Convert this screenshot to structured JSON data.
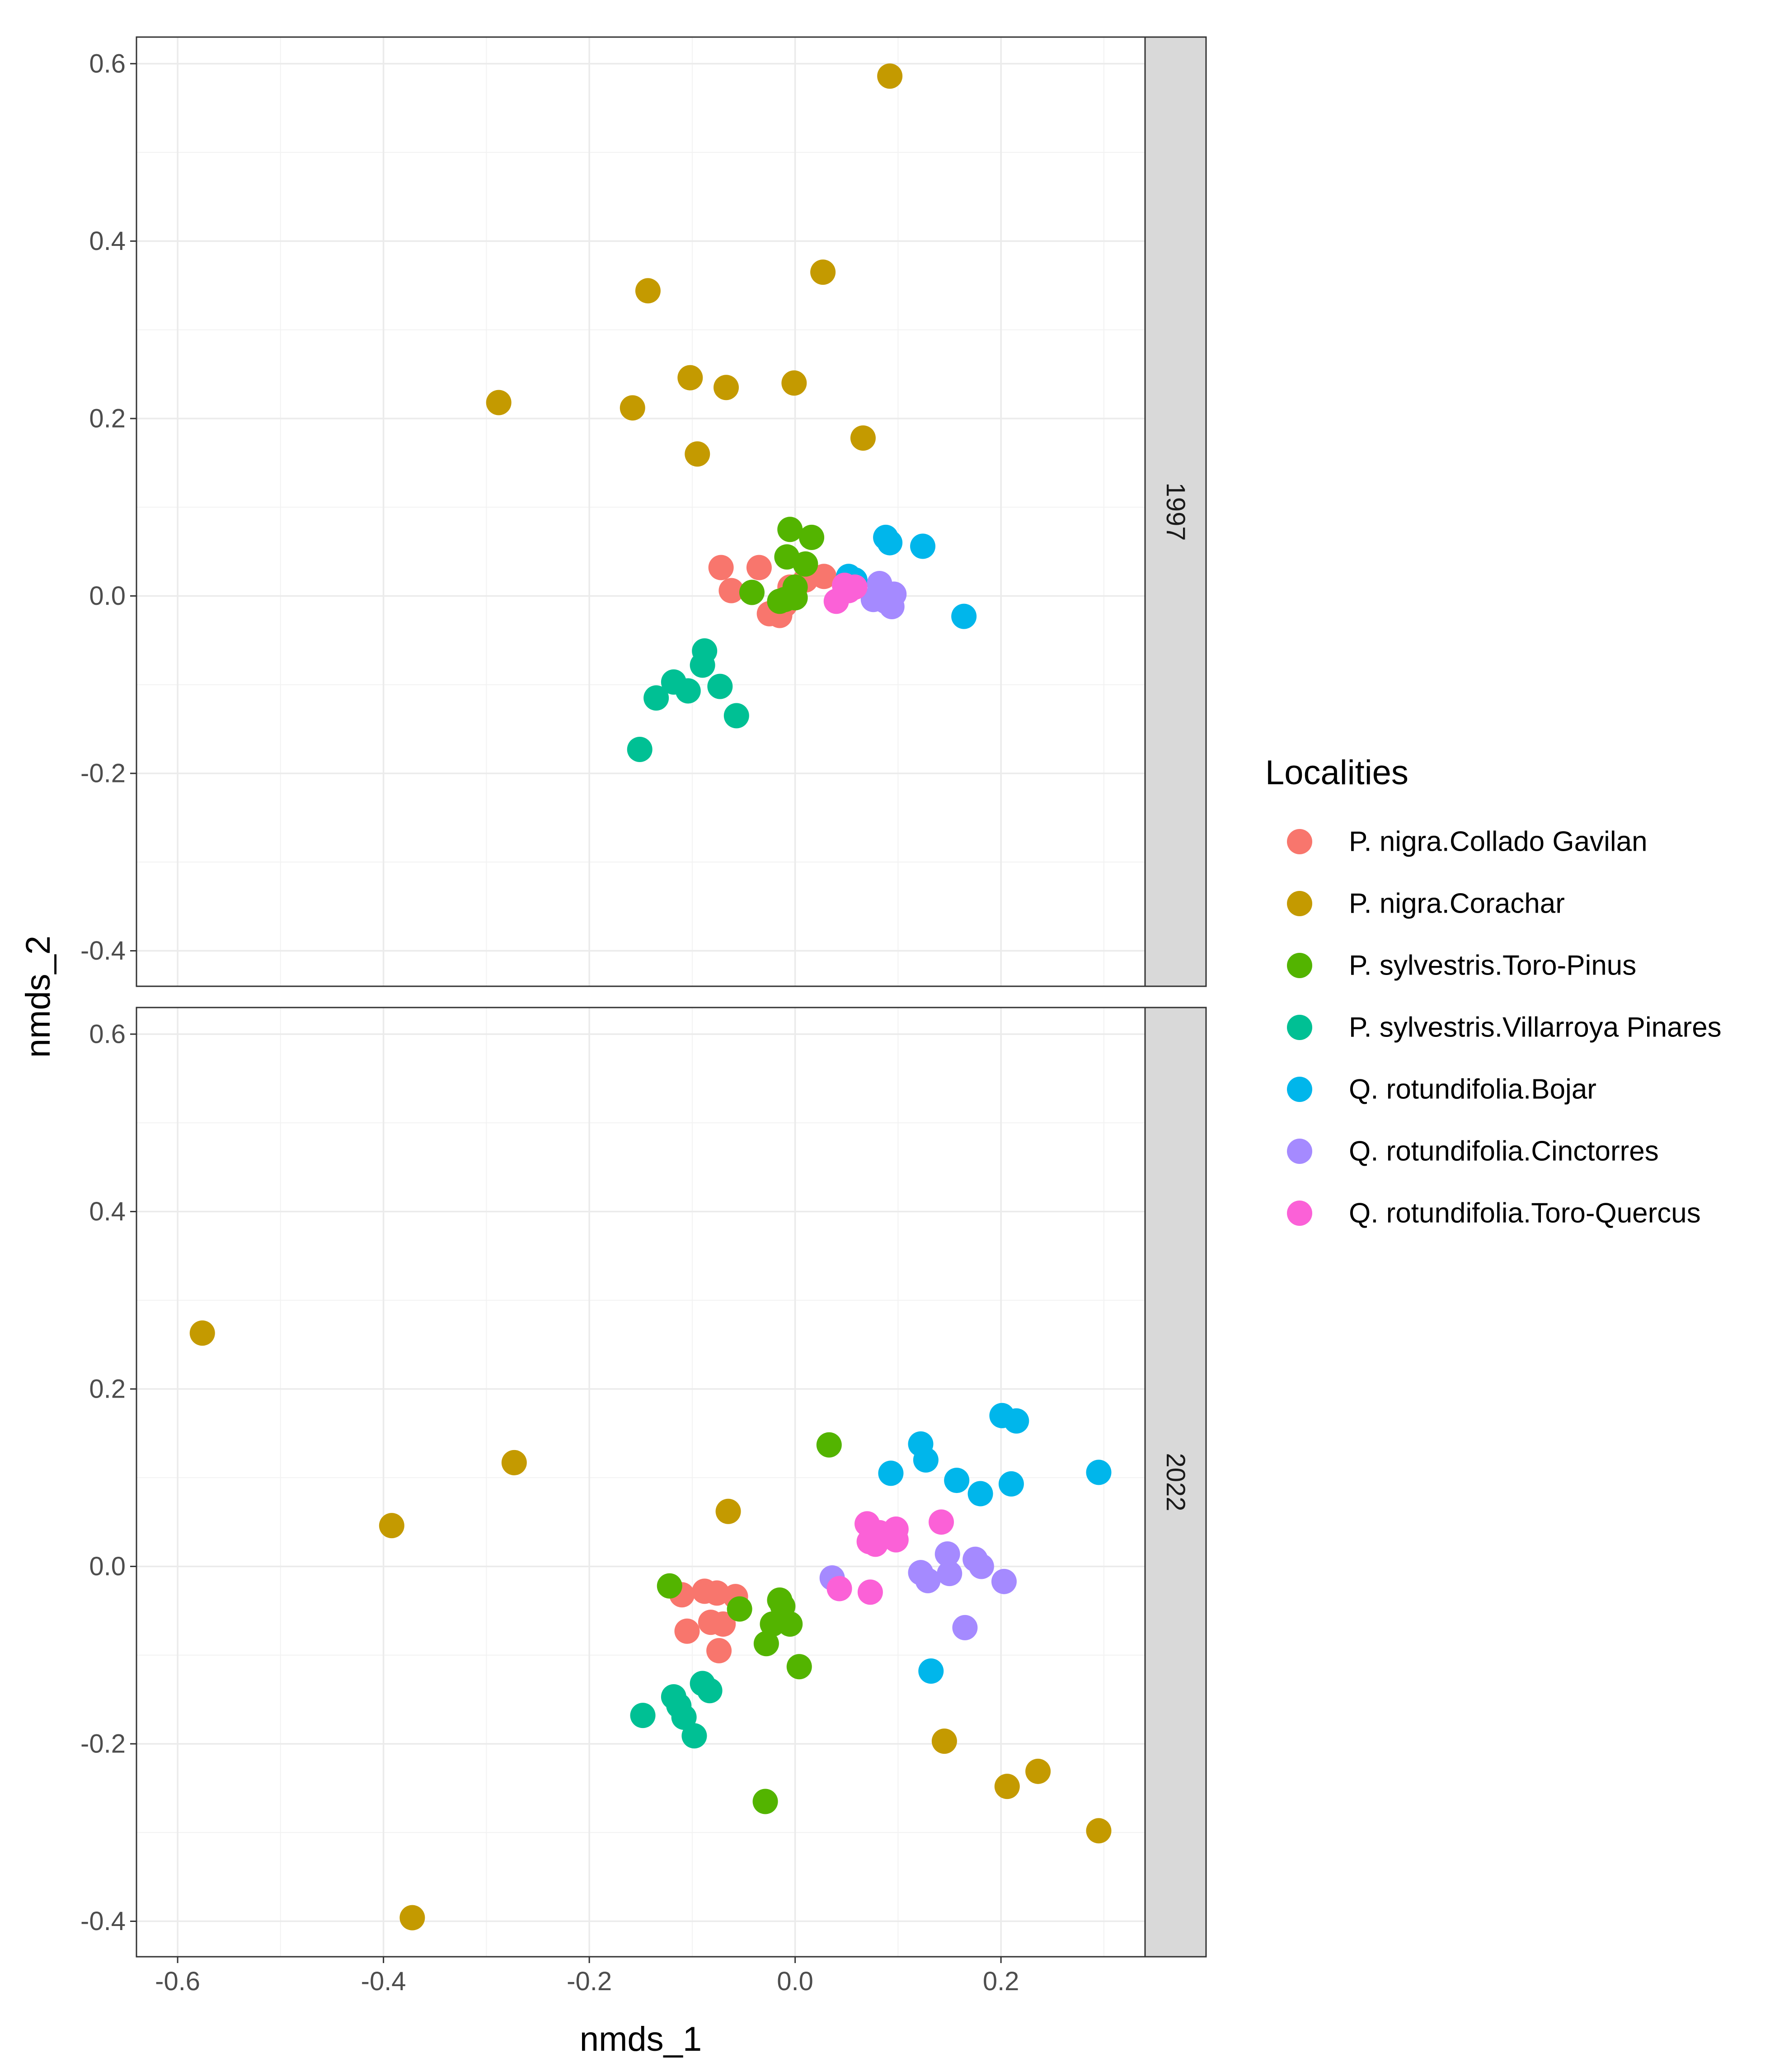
{
  "chart_data": {
    "type": "scatter",
    "facet_variable": "year",
    "xlabel": "nmds_1",
    "ylabel": "nmds_2",
    "xlim": [
      -0.64,
      0.34
    ],
    "ylim": [
      -0.44,
      0.63
    ],
    "x_ticks": [
      -0.6,
      -0.4,
      -0.2,
      0.0,
      0.2
    ],
    "x_tick_labels": [
      "-0.6",
      "-0.4",
      "-0.2",
      "0.0",
      "0.2"
    ],
    "y_ticks": [
      -0.4,
      -0.2,
      0.0,
      0.2,
      0.4,
      0.6
    ],
    "y_tick_labels": [
      "-0.4",
      "-0.2",
      "0.0",
      "0.2",
      "0.4",
      "0.6"
    ],
    "grid": true,
    "legend": {
      "title": "Localities",
      "position": "right",
      "entries": [
        {
          "key": "PNCG",
          "label": "P. nigra.Collado Gavilan",
          "color": "#F8766D"
        },
        {
          "key": "PNC",
          "label": "P. nigra.Corachar",
          "color": "#C49A00"
        },
        {
          "key": "PSTP",
          "label": "P. sylvestris.Toro-Pinus",
          "color": "#53B400"
        },
        {
          "key": "PSVP",
          "label": "P. sylvestris.Villarroya Pinares",
          "color": "#00C094"
        },
        {
          "key": "QRB",
          "label": "Q. rotundifolia.Bojar",
          "color": "#00B6EB"
        },
        {
          "key": "QRC",
          "label": "Q. rotundifolia.Cinctorres",
          "color": "#A58AFF"
        },
        {
          "key": "QRTQ",
          "label": "Q. rotundifolia.Toro-Quercus",
          "color": "#FB61D7"
        }
      ]
    },
    "panels": [
      {
        "strip": "1997",
        "series": [
          {
            "key": "PNCG",
            "points": [
              [
                -0.072,
                0.032
              ],
              [
                -0.035,
                0.032
              ],
              [
                -0.062,
                0.006
              ],
              [
                -0.025,
                -0.02
              ],
              [
                -0.015,
                -0.022
              ],
              [
                -0.005,
                0.01
              ],
              [
                0.028,
                0.022
              ],
              [
                0.01,
                0.018
              ],
              [
                -0.01,
                -0.01
              ]
            ]
          },
          {
            "key": "PNC",
            "points": [
              [
                0.092,
                0.586
              ],
              [
                0.027,
                0.365
              ],
              [
                -0.143,
                0.344
              ],
              [
                -0.288,
                0.218
              ],
              [
                -0.158,
                0.212
              ],
              [
                -0.102,
                0.246
              ],
              [
                -0.067,
                0.235
              ],
              [
                -0.001,
                0.24
              ],
              [
                0.066,
                0.178
              ],
              [
                -0.095,
                0.16
              ]
            ]
          },
          {
            "key": "PSTP",
            "points": [
              [
                -0.005,
                0.075
              ],
              [
                0.016,
                0.066
              ],
              [
                -0.008,
                0.044
              ],
              [
                0.01,
                0.036
              ],
              [
                -0.042,
                0.004
              ],
              [
                -0.01,
                -0.004
              ],
              [
                0.0,
                0.01
              ],
              [
                -0.015,
                -0.006
              ],
              [
                0.0,
                -0.002
              ]
            ]
          },
          {
            "key": "PSVP",
            "points": [
              [
                -0.088,
                -0.062
              ],
              [
                -0.09,
                -0.078
              ],
              [
                -0.118,
                -0.097
              ],
              [
                -0.135,
                -0.115
              ],
              [
                -0.104,
                -0.107
              ],
              [
                -0.073,
                -0.102
              ],
              [
                -0.057,
                -0.135
              ],
              [
                -0.151,
                -0.173
              ]
            ]
          },
          {
            "key": "QRB",
            "points": [
              [
                0.088,
                0.066
              ],
              [
                0.092,
                0.06
              ],
              [
                0.124,
                0.056
              ],
              [
                0.052,
                0.022
              ],
              [
                0.058,
                0.018
              ],
              [
                0.164,
                -0.023
              ]
            ]
          },
          {
            "key": "QRC",
            "points": [
              [
                0.082,
                0.014
              ],
              [
                0.096,
                0.002
              ],
              [
                0.094,
                -0.012
              ],
              [
                0.076,
                -0.004
              ],
              [
                0.088,
                -0.006
              ]
            ]
          },
          {
            "key": "QRTQ",
            "points": [
              [
                0.048,
                0.012
              ],
              [
                0.058,
                0.01
              ],
              [
                0.04,
                -0.006
              ],
              [
                0.052,
                0.006
              ]
            ]
          }
        ]
      },
      {
        "strip": "2022",
        "series": [
          {
            "key": "PNCG",
            "points": [
              [
                -0.11,
                -0.032
              ],
              [
                -0.088,
                -0.028
              ],
              [
                -0.076,
                -0.03
              ],
              [
                -0.058,
                -0.034
              ],
              [
                -0.105,
                -0.073
              ],
              [
                -0.082,
                -0.063
              ],
              [
                -0.07,
                -0.065
              ],
              [
                -0.074,
                -0.095
              ]
            ]
          },
          {
            "key": "PNC",
            "points": [
              [
                -0.576,
                0.263
              ],
              [
                -0.392,
                0.046
              ],
              [
                -0.273,
                0.117
              ],
              [
                -0.065,
                0.062
              ],
              [
                -0.372,
                -0.396
              ],
              [
                0.145,
                -0.197
              ],
              [
                0.206,
                -0.248
              ],
              [
                0.236,
                -0.231
              ],
              [
                0.295,
                -0.298
              ]
            ]
          },
          {
            "key": "PSTP",
            "points": [
              [
                0.033,
                0.137
              ],
              [
                -0.122,
                -0.022
              ],
              [
                -0.054,
                -0.048
              ],
              [
                -0.015,
                -0.038
              ],
              [
                -0.012,
                -0.045
              ],
              [
                -0.005,
                -0.065
              ],
              [
                -0.022,
                -0.065
              ],
              [
                -0.028,
                -0.087
              ],
              [
                0.004,
                -0.113
              ],
              [
                -0.029,
                -0.265
              ]
            ]
          },
          {
            "key": "PSVP",
            "points": [
              [
                -0.118,
                -0.147
              ],
              [
                -0.113,
                -0.157
              ],
              [
                -0.09,
                -0.132
              ],
              [
                -0.083,
                -0.14
              ],
              [
                -0.148,
                -0.168
              ],
              [
                -0.108,
                -0.17
              ],
              [
                -0.098,
                -0.191
              ]
            ]
          },
          {
            "key": "QRB",
            "points": [
              [
                0.201,
                0.17
              ],
              [
                0.215,
                0.164
              ],
              [
                0.122,
                0.138
              ],
              [
                0.127,
                0.12
              ],
              [
                0.093,
                0.105
              ],
              [
                0.157,
                0.097
              ],
              [
                0.21,
                0.093
              ],
              [
                0.295,
                0.106
              ],
              [
                0.18,
                0.082
              ],
              [
                0.132,
                -0.118
              ]
            ]
          },
          {
            "key": "QRC",
            "points": [
              [
                0.036,
                -0.013
              ],
              [
                0.122,
                -0.007
              ],
              [
                0.129,
                -0.016
              ],
              [
                0.148,
                0.014
              ],
              [
                0.15,
                -0.008
              ],
              [
                0.175,
                0.008
              ],
              [
                0.181,
                0.0
              ],
              [
                0.203,
                -0.017
              ],
              [
                0.165,
                -0.069
              ]
            ]
          },
          {
            "key": "QRTQ",
            "points": [
              [
                0.07,
                0.048
              ],
              [
                0.082,
                0.038
              ],
              [
                0.098,
                0.042
              ],
              [
                0.072,
                0.028
              ],
              [
                0.098,
                0.03
              ],
              [
                0.078,
                0.025
              ],
              [
                0.142,
                0.05
              ],
              [
                0.043,
                -0.025
              ],
              [
                0.073,
                -0.029
              ]
            ]
          }
        ]
      }
    ]
  }
}
